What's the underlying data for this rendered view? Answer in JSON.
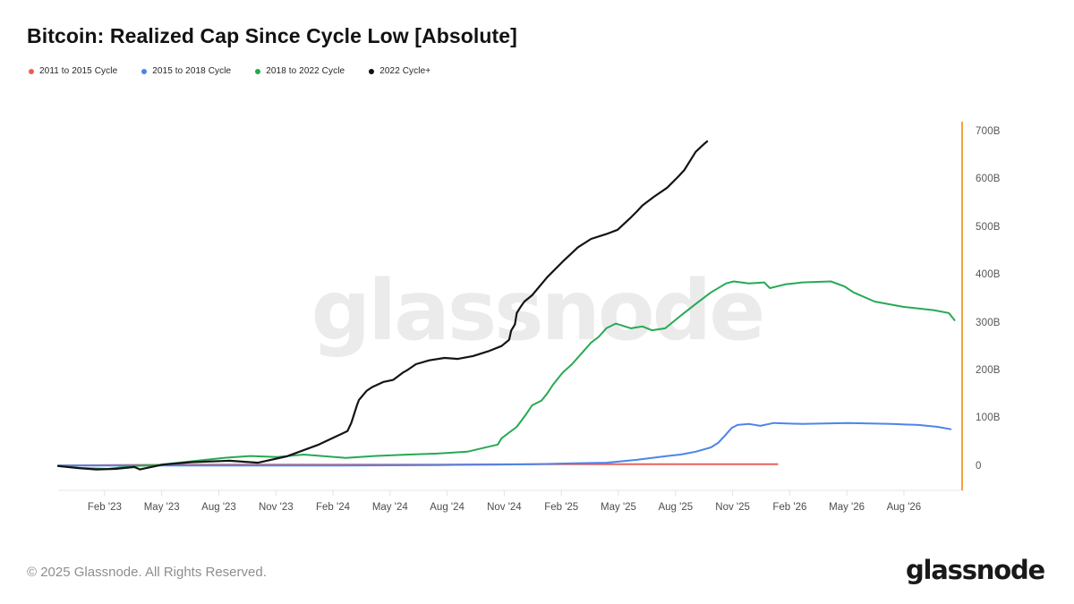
{
  "header": {
    "title": "Bitcoin: Realized Cap Since Cycle Low [Absolute]"
  },
  "legend": [
    {
      "label": "2011 to 2015 Cycle",
      "color": "#ef5c52"
    },
    {
      "label": "2015 to 2018 Cycle",
      "color": "#4d84ea"
    },
    {
      "label": "2018 to 2022 Cycle",
      "color": "#21a94f"
    },
    {
      "label": "2022 Cycle+",
      "color": "#111111"
    }
  ],
  "watermark": "glassnode",
  "footer": {
    "copyright": "© 2025 Glassnode. All Rights Reserved.",
    "logo": "glassnode"
  },
  "chart_data": {
    "type": "line",
    "title": "Bitcoin: Realized Cap Since Cycle Low [Absolute]",
    "x_unit": "months since cycle low",
    "y_unit": "USD (billions)",
    "x_range": [
      0,
      47.5
    ],
    "y_range": [
      -49,
      722
    ],
    "grid": false,
    "legend_position": "top-left",
    "axis_color": "#f0a43e",
    "baseline_color": "#ededf1",
    "tick_color": "#e3e3e9",
    "y_ticks": [
      {
        "label": "0",
        "value": 0
      },
      {
        "label": "100B",
        "value": 100
      },
      {
        "label": "200B",
        "value": 200
      },
      {
        "label": "300B",
        "value": 300
      },
      {
        "label": "400B",
        "value": 400
      },
      {
        "label": "500B",
        "value": 500
      },
      {
        "label": "600B",
        "value": 600
      },
      {
        "label": "700B",
        "value": 700
      }
    ],
    "x_ticks": [
      {
        "label": "Feb '23",
        "month": 2.44
      },
      {
        "label": "May '23",
        "month": 5.44
      },
      {
        "label": "Aug '23",
        "month": 8.44
      },
      {
        "label": "Nov '23",
        "month": 11.44
      },
      {
        "label": "Feb '24",
        "month": 14.44
      },
      {
        "label": "May '24",
        "month": 17.44
      },
      {
        "label": "Aug '24",
        "month": 20.44
      },
      {
        "label": "Nov '24",
        "month": 23.44
      },
      {
        "label": "Feb '25",
        "month": 26.44
      },
      {
        "label": "May '25",
        "month": 29.44
      },
      {
        "label": "Aug '25",
        "month": 32.44
      },
      {
        "label": "Nov '25",
        "month": 35.44
      },
      {
        "label": "Feb '26",
        "month": 38.44
      },
      {
        "label": "May '26",
        "month": 41.44
      },
      {
        "label": "Aug '26",
        "month": 44.44
      }
    ],
    "series": [
      {
        "name": "2011 to 2015 Cycle",
        "color": "#e8635b",
        "points": [
          [
            0,
            1
          ],
          [
            3,
            2
          ],
          [
            8,
            3
          ],
          [
            15,
            3
          ],
          [
            20,
            3
          ],
          [
            25,
            4
          ],
          [
            30,
            4
          ],
          [
            34,
            4
          ],
          [
            37.8,
            4
          ]
        ]
      },
      {
        "name": "2015 to 2018 Cycle",
        "color": "#4d84ea",
        "points": [
          [
            0,
            1
          ],
          [
            5,
            1
          ],
          [
            10,
            1
          ],
          [
            15,
            1
          ],
          [
            20,
            2
          ],
          [
            23,
            3
          ],
          [
            25.1,
            4
          ],
          [
            27.4,
            6
          ],
          [
            28.8,
            7
          ],
          [
            30.4,
            13
          ],
          [
            31.2,
            17
          ],
          [
            32,
            21
          ],
          [
            32.7,
            24
          ],
          [
            33.5,
            30
          ],
          [
            34.3,
            39
          ],
          [
            34.7,
            49
          ],
          [
            35,
            62
          ],
          [
            35.4,
            80
          ],
          [
            35.7,
            86
          ],
          [
            36.3,
            88
          ],
          [
            36.9,
            84
          ],
          [
            37.6,
            90
          ],
          [
            39.1,
            88
          ],
          [
            41.5,
            90
          ],
          [
            43.8,
            88
          ],
          [
            45.2,
            86
          ],
          [
            46.2,
            82
          ],
          [
            46.9,
            77
          ]
        ]
      },
      {
        "name": "2018 to 2022 Cycle",
        "color": "#27a954",
        "points": [
          [
            0,
            0
          ],
          [
            1.2,
            -4
          ],
          [
            2.6,
            -6
          ],
          [
            4,
            0
          ],
          [
            5.2,
            2
          ],
          [
            7.3,
            11
          ],
          [
            8.7,
            17
          ],
          [
            10.1,
            21
          ],
          [
            11.5,
            19
          ],
          [
            12.9,
            24
          ],
          [
            15.1,
            17
          ],
          [
            16.6,
            21
          ],
          [
            18.4,
            24
          ],
          [
            19.9,
            26
          ],
          [
            21.5,
            30
          ],
          [
            23.1,
            45
          ],
          [
            23.3,
            58
          ],
          [
            24.1,
            82
          ],
          [
            24.6,
            109
          ],
          [
            24.9,
            127
          ],
          [
            25.4,
            137
          ],
          [
            25.7,
            152
          ],
          [
            26,
            170
          ],
          [
            26.5,
            195
          ],
          [
            27,
            213
          ],
          [
            27.6,
            240
          ],
          [
            28,
            258
          ],
          [
            28.4,
            270
          ],
          [
            28.8,
            288
          ],
          [
            29.3,
            298
          ],
          [
            30.1,
            288
          ],
          [
            30.7,
            292
          ],
          [
            31.2,
            284
          ],
          [
            31.9,
            288
          ],
          [
            32.7,
            314
          ],
          [
            33.5,
            339
          ],
          [
            34.3,
            363
          ],
          [
            35.1,
            382
          ],
          [
            35.5,
            386
          ],
          [
            36.3,
            382
          ],
          [
            37.1,
            384
          ],
          [
            37.4,
            372
          ],
          [
            38.2,
            380
          ],
          [
            39.1,
            384
          ],
          [
            40.6,
            386
          ],
          [
            41.3,
            376
          ],
          [
            41.8,
            363
          ],
          [
            42.9,
            344
          ],
          [
            44.4,
            333
          ],
          [
            46,
            326
          ],
          [
            46.8,
            320
          ],
          [
            47.1,
            305
          ]
        ]
      },
      {
        "name": "2022 Cycle+",
        "color": "#141414",
        "points": [
          [
            0,
            0
          ],
          [
            1,
            -4
          ],
          [
            2,
            -7
          ],
          [
            3,
            -6
          ],
          [
            4,
            -2
          ],
          [
            4.3,
            -7
          ],
          [
            5.5,
            3
          ],
          [
            7,
            8
          ],
          [
            9,
            11
          ],
          [
            10.5,
            7
          ],
          [
            12,
            20
          ],
          [
            13.7,
            45
          ],
          [
            14.4,
            58
          ],
          [
            15.2,
            73
          ],
          [
            15.4,
            90
          ],
          [
            15.7,
            127
          ],
          [
            15.8,
            138
          ],
          [
            16.2,
            157
          ],
          [
            16.5,
            165
          ],
          [
            17.1,
            176
          ],
          [
            17.6,
            180
          ],
          [
            18.1,
            195
          ],
          [
            18.4,
            202
          ],
          [
            18.8,
            213
          ],
          [
            19.5,
            221
          ],
          [
            20.3,
            226
          ],
          [
            21,
            224
          ],
          [
            21.8,
            230
          ],
          [
            22.6,
            240
          ],
          [
            23.3,
            251
          ],
          [
            23.7,
            264
          ],
          [
            23.8,
            283
          ],
          [
            24,
            296
          ],
          [
            24.1,
            320
          ],
          [
            24.3,
            333
          ],
          [
            24.5,
            344
          ],
          [
            24.9,
            357
          ],
          [
            25.7,
            395
          ],
          [
            26.5,
            427
          ],
          [
            27.3,
            457
          ],
          [
            28,
            475
          ],
          [
            28.8,
            485
          ],
          [
            29.4,
            494
          ],
          [
            30.1,
            520
          ],
          [
            30.4,
            532
          ],
          [
            30.7,
            545
          ],
          [
            31.3,
            563
          ],
          [
            32,
            582
          ],
          [
            32.6,
            606
          ],
          [
            32.9,
            619
          ],
          [
            33.2,
            638
          ],
          [
            33.5,
            657
          ],
          [
            33.9,
            672
          ],
          [
            34.1,
            679
          ]
        ]
      }
    ]
  }
}
